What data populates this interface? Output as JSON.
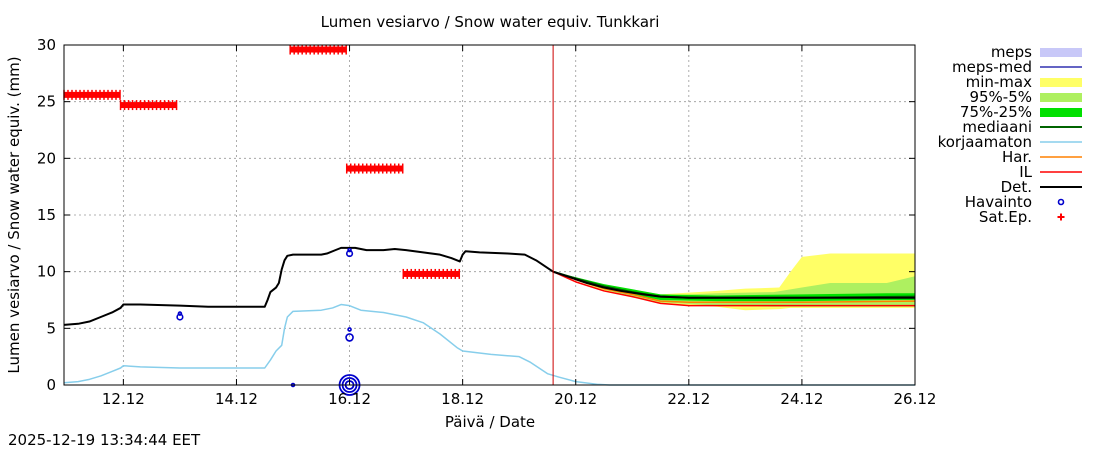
{
  "chart_data": {
    "type": "line",
    "title": "Lumen vesiarvo / Snow water equiv.  Tunkkari",
    "xlabel": "Päivä / Date",
    "ylabel": "Lumen vesiarvo / Snow water equiv. (mm)",
    "timestamp": "2025-12-19 13:34:44 EET",
    "xlim": [
      10.95,
      26.0
    ],
    "ylim": [
      0,
      30
    ],
    "x_ticks": [
      {
        "value": 12,
        "label": "12.12"
      },
      {
        "value": 14,
        "label": "14.12"
      },
      {
        "value": 16,
        "label": "16.12"
      },
      {
        "value": 18,
        "label": "18.12"
      },
      {
        "value": 20,
        "label": "20.12"
      },
      {
        "value": 22,
        "label": "22.12"
      },
      {
        "value": 24,
        "label": "24.12"
      },
      {
        "value": 26,
        "label": "26.12"
      }
    ],
    "y_ticks": [
      0,
      5,
      10,
      15,
      20,
      25,
      30
    ],
    "now_line_x": 19.6,
    "colors": {
      "meps": "#c8c8f8",
      "meps_med": "#3030b0",
      "min_max": "#ffff66",
      "p95_5": "#aef060",
      "p75_25": "#00e000",
      "median": "#006400",
      "korjaamaton": "#87ceeb",
      "har": "#ff8000",
      "il": "#ff0000",
      "det": "#000000",
      "havainto": "#0000cc",
      "sat_ep": "#ff0000",
      "now_line": "#cc0000"
    },
    "legend": [
      {
        "key": "meps",
        "label": "meps",
        "style": "band"
      },
      {
        "key": "meps_med",
        "label": "meps-med",
        "style": "line"
      },
      {
        "key": "min_max",
        "label": "min-max",
        "style": "band"
      },
      {
        "key": "p95_5",
        "label": "95%-5%",
        "style": "band"
      },
      {
        "key": "p75_25",
        "label": "75%-25%",
        "style": "band"
      },
      {
        "key": "median",
        "label": "mediaani",
        "style": "line"
      },
      {
        "key": "korjaamaton",
        "label": "korjaamaton",
        "style": "line"
      },
      {
        "key": "har",
        "label": "Har.",
        "style": "line"
      },
      {
        "key": "il",
        "label": "IL",
        "style": "line"
      },
      {
        "key": "det",
        "label": "Det.",
        "style": "line"
      },
      {
        "key": "havainto",
        "label": "Havainto",
        "style": "circle"
      },
      {
        "key": "sat_ep",
        "label": "Sat.Ep.",
        "style": "plus"
      }
    ],
    "series": [
      {
        "name": "Det.",
        "key": "det",
        "points": [
          [
            10.95,
            5.3
          ],
          [
            11.2,
            5.4
          ],
          [
            11.4,
            5.6
          ],
          [
            11.6,
            6.0
          ],
          [
            11.8,
            6.4
          ],
          [
            11.95,
            6.8
          ],
          [
            12.0,
            7.1
          ],
          [
            12.3,
            7.1
          ],
          [
            13.0,
            7.0
          ],
          [
            13.5,
            6.9
          ],
          [
            14.0,
            6.9
          ],
          [
            14.5,
            6.9
          ],
          [
            14.55,
            7.5
          ],
          [
            14.6,
            8.2
          ],
          [
            14.7,
            8.6
          ],
          [
            14.75,
            9.0
          ],
          [
            14.8,
            10.2
          ],
          [
            14.85,
            11.0
          ],
          [
            14.9,
            11.4
          ],
          [
            15.0,
            11.5
          ],
          [
            15.5,
            11.5
          ],
          [
            15.6,
            11.6
          ],
          [
            15.75,
            11.9
          ],
          [
            15.85,
            12.1
          ],
          [
            16.1,
            12.1
          ],
          [
            16.3,
            11.9
          ],
          [
            16.6,
            11.9
          ],
          [
            16.8,
            12.0
          ],
          [
            17.0,
            11.9
          ],
          [
            17.3,
            11.7
          ],
          [
            17.6,
            11.5
          ],
          [
            17.8,
            11.2
          ],
          [
            17.95,
            10.9
          ],
          [
            18.0,
            11.5
          ],
          [
            18.05,
            11.8
          ],
          [
            18.3,
            11.7
          ],
          [
            18.8,
            11.6
          ],
          [
            19.1,
            11.5
          ],
          [
            19.3,
            11.0
          ],
          [
            19.6,
            10.0
          ],
          [
            19.9,
            9.5
          ],
          [
            20.2,
            9.0
          ],
          [
            20.5,
            8.6
          ],
          [
            20.8,
            8.3
          ],
          [
            21.2,
            8.0
          ],
          [
            21.5,
            7.8
          ],
          [
            22.0,
            7.7
          ],
          [
            24.0,
            7.7
          ],
          [
            26.0,
            7.7
          ]
        ]
      },
      {
        "name": "korjaamaton",
        "key": "korjaamaton",
        "points": [
          [
            10.95,
            0.2
          ],
          [
            11.2,
            0.3
          ],
          [
            11.4,
            0.5
          ],
          [
            11.6,
            0.8
          ],
          [
            11.8,
            1.2
          ],
          [
            11.95,
            1.5
          ],
          [
            12.0,
            1.7
          ],
          [
            12.3,
            1.6
          ],
          [
            13.0,
            1.5
          ],
          [
            14.0,
            1.5
          ],
          [
            14.5,
            1.5
          ],
          [
            14.6,
            2.2
          ],
          [
            14.7,
            3.0
          ],
          [
            14.8,
            3.5
          ],
          [
            14.85,
            5.0
          ],
          [
            14.9,
            6.0
          ],
          [
            15.0,
            6.5
          ],
          [
            15.5,
            6.6
          ],
          [
            15.7,
            6.8
          ],
          [
            15.85,
            7.1
          ],
          [
            16.0,
            7.0
          ],
          [
            16.2,
            6.6
          ],
          [
            16.6,
            6.4
          ],
          [
            17.0,
            6.0
          ],
          [
            17.3,
            5.5
          ],
          [
            17.6,
            4.5
          ],
          [
            17.9,
            3.3
          ],
          [
            18.0,
            3.0
          ],
          [
            18.5,
            2.7
          ],
          [
            19.0,
            2.5
          ],
          [
            19.2,
            2.0
          ],
          [
            19.5,
            1.0
          ],
          [
            19.7,
            0.7
          ],
          [
            20.0,
            0.3
          ],
          [
            20.4,
            0.05
          ],
          [
            20.6,
            0.0
          ],
          [
            26.0,
            0.0
          ]
        ]
      },
      {
        "name": "Har.",
        "key": "har",
        "points": [
          [
            19.6,
            10.0
          ],
          [
            20.0,
            9.3
          ],
          [
            20.5,
            8.5
          ],
          [
            21.0,
            8.0
          ],
          [
            21.5,
            7.4
          ],
          [
            22.0,
            7.3
          ],
          [
            24.0,
            7.3
          ],
          [
            26.0,
            7.4
          ]
        ]
      },
      {
        "name": "IL",
        "key": "il",
        "points": [
          [
            19.6,
            10.0
          ],
          [
            20.0,
            9.1
          ],
          [
            20.5,
            8.3
          ],
          [
            21.0,
            7.8
          ],
          [
            21.5,
            7.2
          ],
          [
            22.0,
            7.0
          ],
          [
            24.0,
            7.0
          ],
          [
            26.0,
            7.0
          ]
        ]
      },
      {
        "name": "mediaani",
        "key": "median",
        "points": [
          [
            19.6,
            10.0
          ],
          [
            20.0,
            9.4
          ],
          [
            20.5,
            8.7
          ],
          [
            21.0,
            8.2
          ],
          [
            21.5,
            7.8
          ],
          [
            22.0,
            7.7
          ],
          [
            24.0,
            7.7
          ],
          [
            26.0,
            7.8
          ]
        ]
      }
    ],
    "bands": [
      {
        "name": "min-max",
        "key": "min_max",
        "x": [
          19.6,
          20.5,
          21.5,
          22.5,
          23.0,
          23.6,
          23.8,
          24.0,
          24.5,
          25.5,
          26.0
        ],
        "lower": [
          10.0,
          8.3,
          7.2,
          6.9,
          6.6,
          6.7,
          6.8,
          6.8,
          6.8,
          6.8,
          6.8
        ],
        "upper": [
          10.0,
          8.8,
          8.0,
          8.3,
          8.5,
          8.6,
          10.0,
          11.3,
          11.6,
          11.6,
          11.6
        ]
      },
      {
        "name": "95%-5%",
        "key": "p95_5",
        "x": [
          19.6,
          20.5,
          21.5,
          22.5,
          23.5,
          24.0,
          24.5,
          25.5,
          26.0
        ],
        "lower": [
          10.0,
          8.4,
          7.3,
          7.0,
          6.9,
          6.9,
          6.9,
          6.9,
          6.9
        ],
        "upper": [
          10.0,
          8.7,
          7.9,
          8.1,
          8.2,
          8.6,
          9.0,
          9.0,
          9.6
        ]
      },
      {
        "name": "75%-25%",
        "key": "p75_25",
        "x": [
          19.6,
          20.5,
          21.5,
          22.5,
          24.0,
          25.5,
          26.0
        ],
        "lower": [
          10.0,
          8.5,
          7.5,
          7.4,
          7.4,
          7.5,
          7.5
        ],
        "upper": [
          10.0,
          8.9,
          8.0,
          7.9,
          8.0,
          8.1,
          8.1
        ]
      }
    ],
    "sat_ep_segments": [
      {
        "x0": 10.95,
        "x1": 11.95,
        "y": 25.6
      },
      {
        "x0": 11.95,
        "x1": 12.95,
        "y": 24.7
      },
      {
        "x0": 14.95,
        "x1": 15.95,
        "y": 29.6
      },
      {
        "x0": 15.95,
        "x1": 16.95,
        "y": 19.1
      },
      {
        "x0": 16.95,
        "x1": 17.95,
        "y": 9.8
      }
    ],
    "havainto": [
      {
        "x": 13.0,
        "y": 6.0,
        "size": "small"
      },
      {
        "x": 13.0,
        "y": 6.3,
        "size": "tiny"
      },
      {
        "x": 16.0,
        "y": 11.6,
        "size": "small"
      },
      {
        "x": 16.0,
        "y": 11.9,
        "size": "tiny"
      },
      {
        "x": 16.0,
        "y": 4.2,
        "size": "medium"
      },
      {
        "x": 16.0,
        "y": 4.9,
        "size": "tiny"
      },
      {
        "x": 15.0,
        "y": 0.0,
        "size": "tiny"
      },
      {
        "x": 16.0,
        "y": 0.0,
        "size": "large"
      }
    ]
  }
}
